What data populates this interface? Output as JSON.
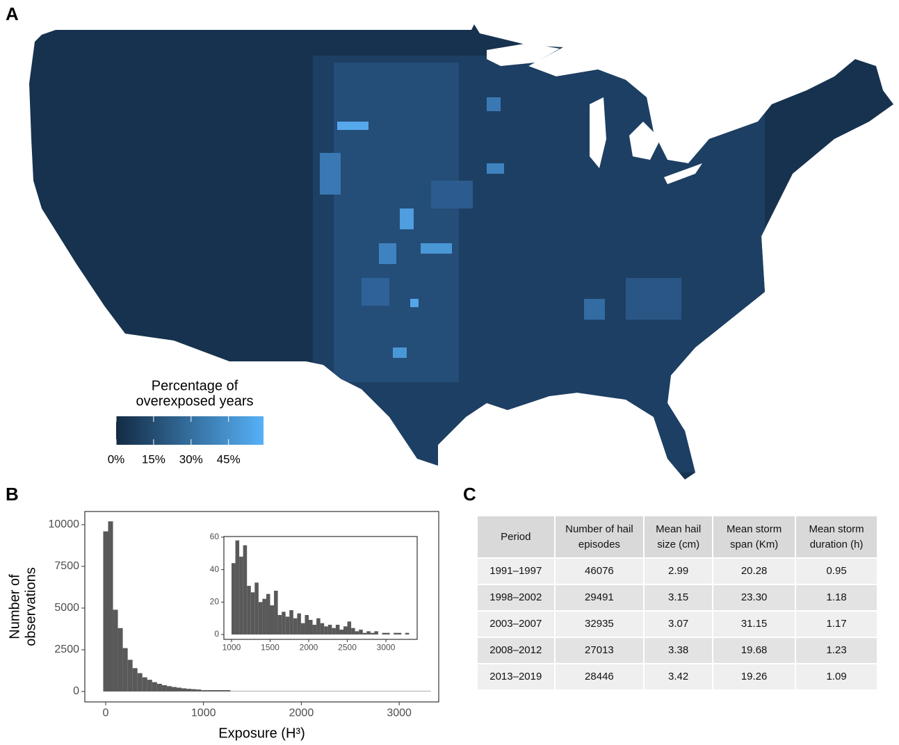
{
  "panel_labels": [
    "A",
    "B",
    "C"
  ],
  "map": {
    "legend_title": [
      "Percentage of",
      "overexposed years"
    ],
    "colorbar": {
      "lim": [
        0,
        59
      ],
      "colors": [
        "#132B43",
        "#56B1F7"
      ],
      "ticks": [
        {
          "value": 0,
          "label": "0%"
        },
        {
          "value": 15,
          "label": "15%"
        },
        {
          "value": 30,
          "label": "30%"
        },
        {
          "value": 45,
          "label": "45%"
        }
      ]
    }
  },
  "chart_data": [
    {
      "type": "histogram",
      "color": "#595959",
      "x_label": "Exposure (H³)",
      "y_label": [
        "Number of",
        "observations"
      ],
      "bins": [
        -25,
        25,
        75,
        125,
        175,
        225,
        275,
        325,
        375,
        425,
        475,
        525,
        575,
        625,
        675,
        725,
        775,
        825,
        875,
        925,
        975,
        1275,
        3325
      ],
      "values": [
        9600,
        10200,
        4900,
        3800,
        2600,
        1900,
        1400,
        1100,
        850,
        700,
        560,
        460,
        380,
        320,
        270,
        230,
        190,
        160,
        140,
        120,
        80,
        20
      ],
      "xlim": [
        -213,
        3404
      ],
      "ylim": [
        -625,
        10790
      ],
      "xticks": [
        0,
        1000,
        2000,
        3000
      ],
      "yticks": [
        0,
        2500,
        5000,
        7500,
        10000
      ]
    },
    {
      "type": "histogram",
      "color": "#595959",
      "bins": [
        1000,
        1050,
        1100,
        1150,
        1200,
        1250,
        1300,
        1350,
        1400,
        1450,
        1500,
        1550,
        1600,
        1650,
        1700,
        1750,
        1800,
        1850,
        1900,
        1950,
        2000,
        2050,
        2100,
        2150,
        2200,
        2250,
        2300,
        2350,
        2400,
        2450,
        2500,
        2550,
        2600,
        2650,
        2700,
        2750,
        2800,
        2850,
        2900,
        2950,
        3000,
        3050,
        3100,
        3150,
        3200,
        3250,
        3300
      ],
      "values": [
        44,
        58,
        48,
        55,
        30,
        26,
        32,
        20,
        22,
        25,
        18,
        27,
        12,
        14,
        11,
        15,
        10,
        13,
        7,
        12,
        9,
        6,
        10,
        7,
        5,
        6,
        4,
        6,
        3,
        5,
        8,
        4,
        2,
        3,
        1,
        2,
        1,
        2,
        0,
        1,
        1,
        0,
        1,
        1,
        0,
        1
      ],
      "xlim": [
        901,
        3405
      ],
      "ylim": [
        -3,
        60.4
      ],
      "xticks": [
        1000,
        1500,
        2000,
        2500,
        3000
      ],
      "yticks": [
        0,
        20,
        40,
        60
      ]
    }
  ],
  "table": {
    "header": [
      "Period",
      "Number of hail episodes",
      "Mean hail size (cm)",
      "Mean storm span (Km)",
      "Mean storm duration (h)"
    ],
    "rows": [
      [
        "1991–1997",
        "46076",
        "2.99",
        "20.28",
        "0.95"
      ],
      [
        "1998–2002",
        "29491",
        "3.15",
        "23.30",
        "1.18"
      ],
      [
        "2003–2007",
        "32935",
        "3.07",
        "31.15",
        "1.17"
      ],
      [
        "2008–2012",
        "27013",
        "3.38",
        "19.68",
        "1.23"
      ],
      [
        "2013–2019",
        "28446",
        "3.42",
        "19.26",
        "1.09"
      ]
    ]
  }
}
